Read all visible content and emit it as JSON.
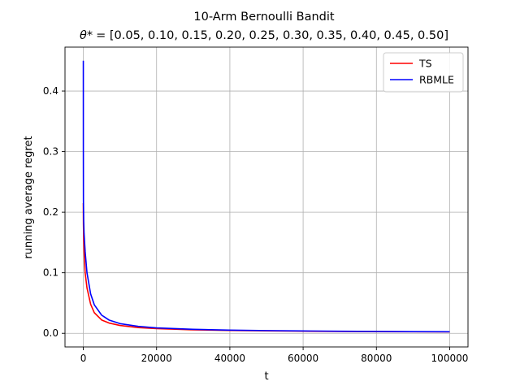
{
  "chart_data": {
    "type": "line",
    "title": "10-Arm Bernoulli Bandit",
    "subtitle_prefix": "θ*",
    "subtitle_values": "= [0.05, 0.10, 0.15, 0.20, 0.25, 0.30, 0.35, 0.40, 0.45, 0.50]",
    "xlabel": "t",
    "ylabel": "running average regret",
    "xlim": [
      -5000,
      105000
    ],
    "ylim": [
      -0.0225,
      0.4725
    ],
    "xticks": [
      0,
      20000,
      40000,
      60000,
      80000,
      100000
    ],
    "xtick_labels": [
      "0",
      "20000",
      "40000",
      "60000",
      "80000",
      "100000"
    ],
    "yticks": [
      0.0,
      0.1,
      0.2,
      0.3,
      0.4
    ],
    "ytick_labels": [
      "0.0",
      "0.1",
      "0.2",
      "0.3",
      "0.4"
    ],
    "grid": true,
    "legend_position": "top-right",
    "series": [
      {
        "name": "TS",
        "color": "#ff0000",
        "x": [
          1,
          10,
          30,
          100,
          200,
          500,
          1000,
          2000,
          3000,
          5000,
          7000,
          10000,
          15000,
          20000,
          30000,
          40000,
          50000,
          60000,
          70000,
          80000,
          90000,
          100000
        ],
        "y": [
          0.215,
          0.2,
          0.18,
          0.155,
          0.135,
          0.1,
          0.075,
          0.048,
          0.034,
          0.022,
          0.017,
          0.013,
          0.0095,
          0.0078,
          0.0058,
          0.0047,
          0.004,
          0.0035,
          0.0031,
          0.0028,
          0.0026,
          0.0024
        ]
      },
      {
        "name": "RBMLE",
        "color": "#0000ff",
        "x": [
          1,
          10,
          30,
          100,
          200,
          500,
          1000,
          2000,
          3000,
          5000,
          7000,
          10000,
          15000,
          20000,
          30000,
          40000,
          50000,
          60000,
          70000,
          80000,
          90000,
          100000
        ],
        "y": [
          0.45,
          0.3,
          0.22,
          0.185,
          0.165,
          0.135,
          0.1,
          0.065,
          0.047,
          0.03,
          0.022,
          0.016,
          0.0115,
          0.009,
          0.0066,
          0.0053,
          0.0045,
          0.0039,
          0.0034,
          0.0031,
          0.0028,
          0.0026
        ]
      }
    ]
  }
}
